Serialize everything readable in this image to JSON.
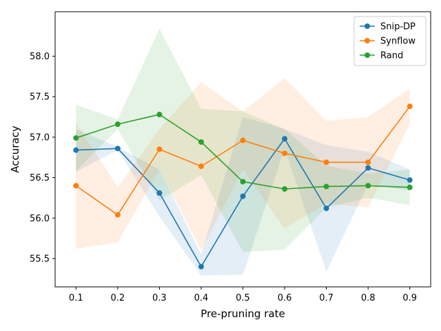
{
  "chart_data": {
    "type": "line",
    "title": "",
    "xlabel": "Pre-pruning rate",
    "ylabel": "Accuracy",
    "x": [
      0.1,
      0.2,
      0.3,
      0.4,
      0.5,
      0.6,
      0.7,
      0.8,
      0.9
    ],
    "x_tick_labels": [
      "0.1",
      "0.2",
      "0.3",
      "0.4",
      "0.5",
      "0.6",
      "0.7",
      "0.8",
      "0.9"
    ],
    "y_ticks": [
      55.5,
      56.0,
      56.5,
      57.0,
      57.5,
      58.0
    ],
    "y_tick_labels": [
      "55.5",
      "56.0",
      "56.5",
      "57.0",
      "57.5",
      "58.0"
    ],
    "xlim": [
      0.05,
      0.95
    ],
    "ylim": [
      55.15,
      58.55
    ],
    "grid": false,
    "legend_position": "top-right",
    "series": [
      {
        "name": "Snip-DP",
        "color": "#1f77b4",
        "values": [
          56.84,
          56.86,
          56.31,
          55.4,
          56.27,
          56.98,
          56.12,
          56.62,
          56.47
        ],
        "band_upper": [
          57.1,
          56.88,
          56.6,
          55.55,
          57.25,
          57.1,
          56.9,
          56.82,
          56.6
        ],
        "band_lower": [
          56.57,
          56.84,
          56.02,
          55.29,
          55.3,
          56.86,
          55.34,
          56.42,
          56.34
        ]
      },
      {
        "name": "Synflow",
        "color": "#ff7f0e",
        "values": [
          56.4,
          56.04,
          56.85,
          56.64,
          56.96,
          56.8,
          56.69,
          56.69,
          57.38
        ],
        "band_upper": [
          57.18,
          56.38,
          57.1,
          57.68,
          57.32,
          57.73,
          57.2,
          57.25,
          57.6
        ],
        "band_lower": [
          55.62,
          55.7,
          56.6,
          55.6,
          56.6,
          55.87,
          56.18,
          56.13,
          57.16
        ]
      },
      {
        "name": "Rand",
        "color": "#2ca02c",
        "values": [
          56.99,
          57.16,
          57.28,
          56.94,
          56.45,
          56.36,
          56.39,
          56.4,
          56.38
        ],
        "band_upper": [
          57.4,
          57.22,
          58.34,
          57.35,
          57.32,
          57.1,
          56.65,
          56.55,
          56.6
        ],
        "band_lower": [
          56.58,
          57.1,
          56.22,
          56.53,
          55.58,
          55.61,
          56.13,
          56.25,
          56.16
        ]
      }
    ]
  }
}
